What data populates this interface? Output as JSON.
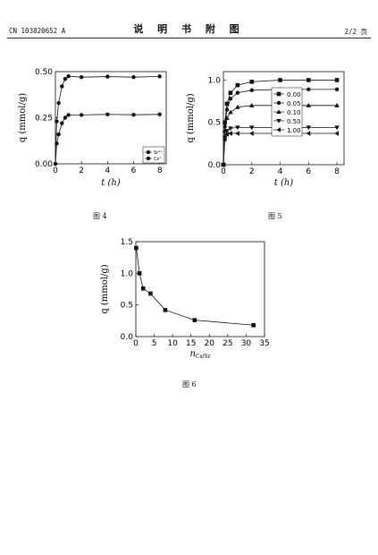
{
  "header": {
    "patent_number": "CN 103820652 A",
    "title": "说 明 书 附 图",
    "page": "2/2 页"
  },
  "captions": {
    "fig4": "图 4",
    "fig5": "图 5",
    "fig6": "图 6"
  },
  "chart_data": [
    {
      "type": "line",
      "id": "fig4",
      "xlabel": "t (h)",
      "ylabel": "q (mmol/g)",
      "xlim": [
        0,
        8.5
      ],
      "ylim": [
        0,
        0.5
      ],
      "xticks": [
        "0",
        "2",
        "4",
        "6",
        "8"
      ],
      "yticks": [
        "0.00",
        "0.25",
        "0.50"
      ],
      "legend": "bottom-right",
      "series": [
        {
          "name": "Sr²⁺",
          "x": [
            0,
            0.1,
            0.25,
            0.5,
            0.75,
            1,
            2,
            4,
            6,
            8
          ],
          "values": [
            0.0,
            0.11,
            0.16,
            0.22,
            0.25,
            0.265,
            0.265,
            0.268,
            0.266,
            0.268
          ]
        },
        {
          "name": "Cs⁺",
          "x": [
            0,
            0.1,
            0.25,
            0.5,
            0.75,
            1,
            2,
            4,
            6,
            8
          ],
          "values": [
            0.0,
            0.23,
            0.33,
            0.42,
            0.46,
            0.475,
            0.47,
            0.473,
            0.47,
            0.474
          ]
        }
      ]
    },
    {
      "type": "line",
      "id": "fig5",
      "xlabel": "t (h)",
      "ylabel": "q (mmol/g)",
      "xlim": [
        0,
        8.5
      ],
      "ylim": [
        0,
        1.1
      ],
      "xticks": [
        "0",
        "2",
        "4",
        "6",
        "8"
      ],
      "yticks": [
        "0.0",
        "0.5",
        "1.0"
      ],
      "legend": "right",
      "series": [
        {
          "name": "0.00",
          "marker": "square",
          "x": [
            0,
            0.1,
            0.25,
            0.5,
            1,
            2,
            4,
            6,
            8
          ],
          "values": [
            0.0,
            0.5,
            0.72,
            0.85,
            0.94,
            0.98,
            1.0,
            1.0,
            1.0
          ]
        },
        {
          "name": "0.05",
          "marker": "circle",
          "x": [
            0,
            0.1,
            0.25,
            0.5,
            1,
            2,
            4,
            6,
            8
          ],
          "values": [
            0.0,
            0.45,
            0.65,
            0.78,
            0.85,
            0.88,
            0.89,
            0.89,
            0.89
          ]
        },
        {
          "name": "0.10",
          "marker": "triangle-up",
          "x": [
            0,
            0.1,
            0.25,
            0.5,
            1,
            2,
            4,
            6,
            8
          ],
          "values": [
            0.0,
            0.4,
            0.55,
            0.62,
            0.68,
            0.7,
            0.7,
            0.7,
            0.7
          ]
        },
        {
          "name": "0.50",
          "marker": "triangle-down",
          "x": [
            0,
            0.1,
            0.25,
            0.5,
            1,
            2,
            4,
            6,
            8
          ],
          "values": [
            0.0,
            0.32,
            0.4,
            0.43,
            0.44,
            0.44,
            0.44,
            0.44,
            0.44
          ]
        },
        {
          "name": "1.00",
          "marker": "triangle-left",
          "x": [
            0,
            0.1,
            0.25,
            0.5,
            1,
            2,
            4,
            6,
            8
          ],
          "values": [
            0.0,
            0.3,
            0.36,
            0.37,
            0.37,
            0.37,
            0.37,
            0.37,
            0.37
          ]
        }
      ]
    },
    {
      "type": "line",
      "id": "fig6",
      "xlabel": "n",
      "xlabel_sub": "Cs/Sr",
      "ylabel": "q (mmol/g)",
      "xlim": [
        0,
        35
      ],
      "ylim": [
        0,
        1.5
      ],
      "xticks": [
        "0",
        "5",
        "10",
        "15",
        "20",
        "25",
        "30",
        "35"
      ],
      "yticks": [
        "0.0",
        "0.5",
        "1.0",
        "1.5"
      ],
      "series": [
        {
          "name": "",
          "marker": "square",
          "x": [
            0.1,
            1,
            2,
            4,
            8,
            16,
            32
          ],
          "values": [
            1.4,
            1.0,
            0.76,
            0.68,
            0.42,
            0.26,
            0.18
          ]
        }
      ]
    }
  ]
}
